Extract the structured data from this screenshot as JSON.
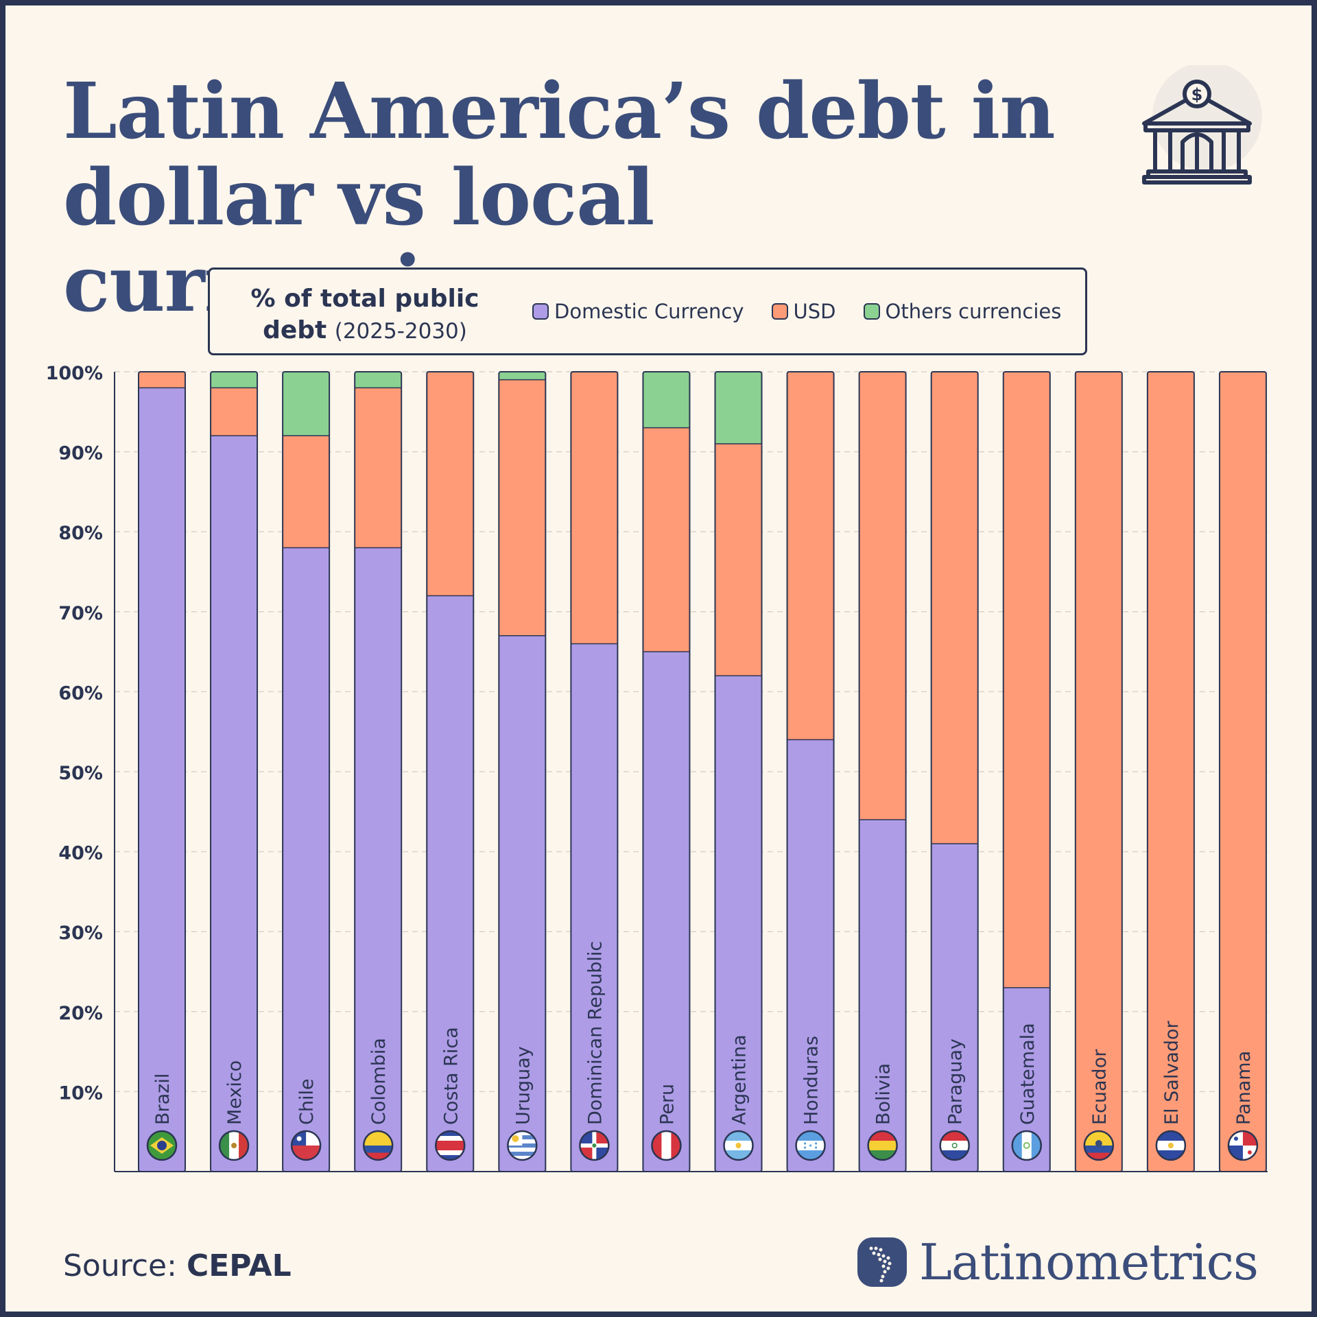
{
  "title": {
    "line1": "Latin America’s debt in",
    "line2": "dollar vs local currencies"
  },
  "legend": {
    "heading_bold1": "% of total public",
    "heading_bold2": "debt",
    "heading_period": "(2025-2030)",
    "items": [
      {
        "label": "Domestic Currency",
        "color": "#ae9ce6"
      },
      {
        "label": "USD",
        "color": "#ff9b76"
      },
      {
        "label": "Others currencies",
        "color": "#8bd192"
      }
    ]
  },
  "chart_data": {
    "type": "bar",
    "stacked": true,
    "categories": [
      "Brazil",
      "Mexico",
      "Chile",
      "Colombia",
      "Costa Rica",
      "Uruguay",
      "Dominican Republic",
      "Peru",
      "Argentina",
      "Honduras",
      "Bolivia",
      "Paraguay",
      "Guatemala",
      "Ecuador",
      "El Salvador",
      "Panama"
    ],
    "series": [
      {
        "name": "Domestic Currency",
        "color": "#ae9ce6",
        "values": [
          98,
          92,
          78,
          78,
          72,
          67,
          66,
          65,
          62,
          54,
          44,
          41,
          23,
          0,
          0,
          0
        ]
      },
      {
        "name": "USD",
        "color": "#ff9b76",
        "values": [
          2,
          6,
          14,
          20,
          28,
          32,
          34,
          28,
          29,
          46,
          56,
          59,
          77,
          100,
          100,
          100
        ]
      },
      {
        "name": "Others currencies",
        "color": "#8bd192",
        "values": [
          0,
          2,
          8,
          2,
          0,
          1,
          0,
          7,
          9,
          0,
          0,
          0,
          0,
          0,
          0,
          0
        ]
      }
    ],
    "ylim": [
      0,
      100
    ],
    "yticks": [
      "10%",
      "20%",
      "30%",
      "40%",
      "50%",
      "60%",
      "70%",
      "80%",
      "90%",
      "100%"
    ],
    "grid": true,
    "flag_icons": [
      "brazil-flag-icon",
      "mexico-flag-icon",
      "chile-flag-icon",
      "colombia-flag-icon",
      "costa-rica-flag-icon",
      "uruguay-flag-icon",
      "dominican-republic-flag-icon",
      "peru-flag-icon",
      "argentina-flag-icon",
      "honduras-flag-icon",
      "bolivia-flag-icon",
      "paraguay-flag-icon",
      "guatemala-flag-icon",
      "ecuador-flag-icon",
      "el-salvador-flag-icon",
      "panama-flag-icon"
    ]
  },
  "footer": {
    "source_label": "Source:",
    "source_name": "CEPAL",
    "brand": "Latinometrics"
  },
  "colors": {
    "ink": "#2b3553",
    "title": "#3b4d7a",
    "background": "#fdf6ec"
  }
}
